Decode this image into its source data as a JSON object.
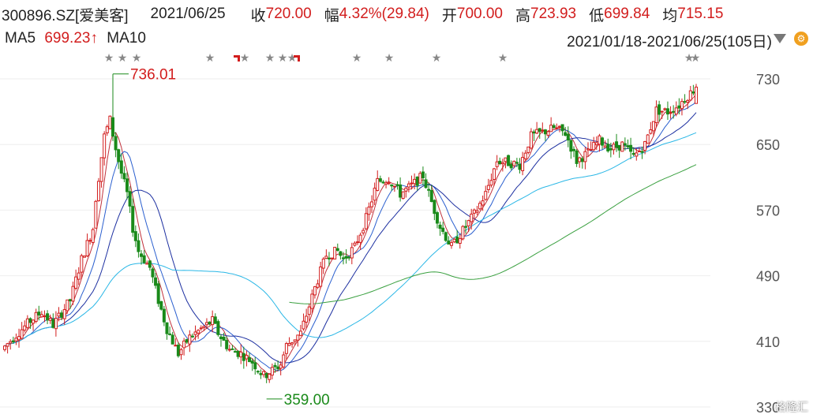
{
  "header": {
    "code_name": "300896.SZ[爱美客]",
    "date": "2021/06/25",
    "close_label": "收",
    "close_value": "720.00",
    "change_label": "幅",
    "change_value": "4.32%(29.84)",
    "open_label": "开",
    "open_value": "700.00",
    "high_label": "高",
    "high_value": "723.93",
    "low_label": "低",
    "low_value": "699.84",
    "avg_label": "均",
    "avg_value": "715.15"
  },
  "indicator": {
    "ma5_label": "MA5",
    "ma5_value": "699.23↑",
    "ma10_label": "MA10",
    "range": "2021/01/18-2021/06/25(105日)"
  },
  "watermark": "格隆汇",
  "chart_data": {
    "type": "candlestick",
    "ylim": [
      330,
      745
    ],
    "y_ticks": [
      "730",
      "650",
      "570",
      "490",
      "410",
      "330"
    ],
    "annotations": {
      "max": "736.01",
      "min": "359.00"
    },
    "colors": {
      "up": "#d21d1d",
      "down": "#1a8a1a",
      "ma5": "#c0303a",
      "ma10": "#2a5fcf",
      "ma20": "#1c2fa0",
      "ma60": "#2ab7e6",
      "ma120": "#3aa040"
    }
  }
}
